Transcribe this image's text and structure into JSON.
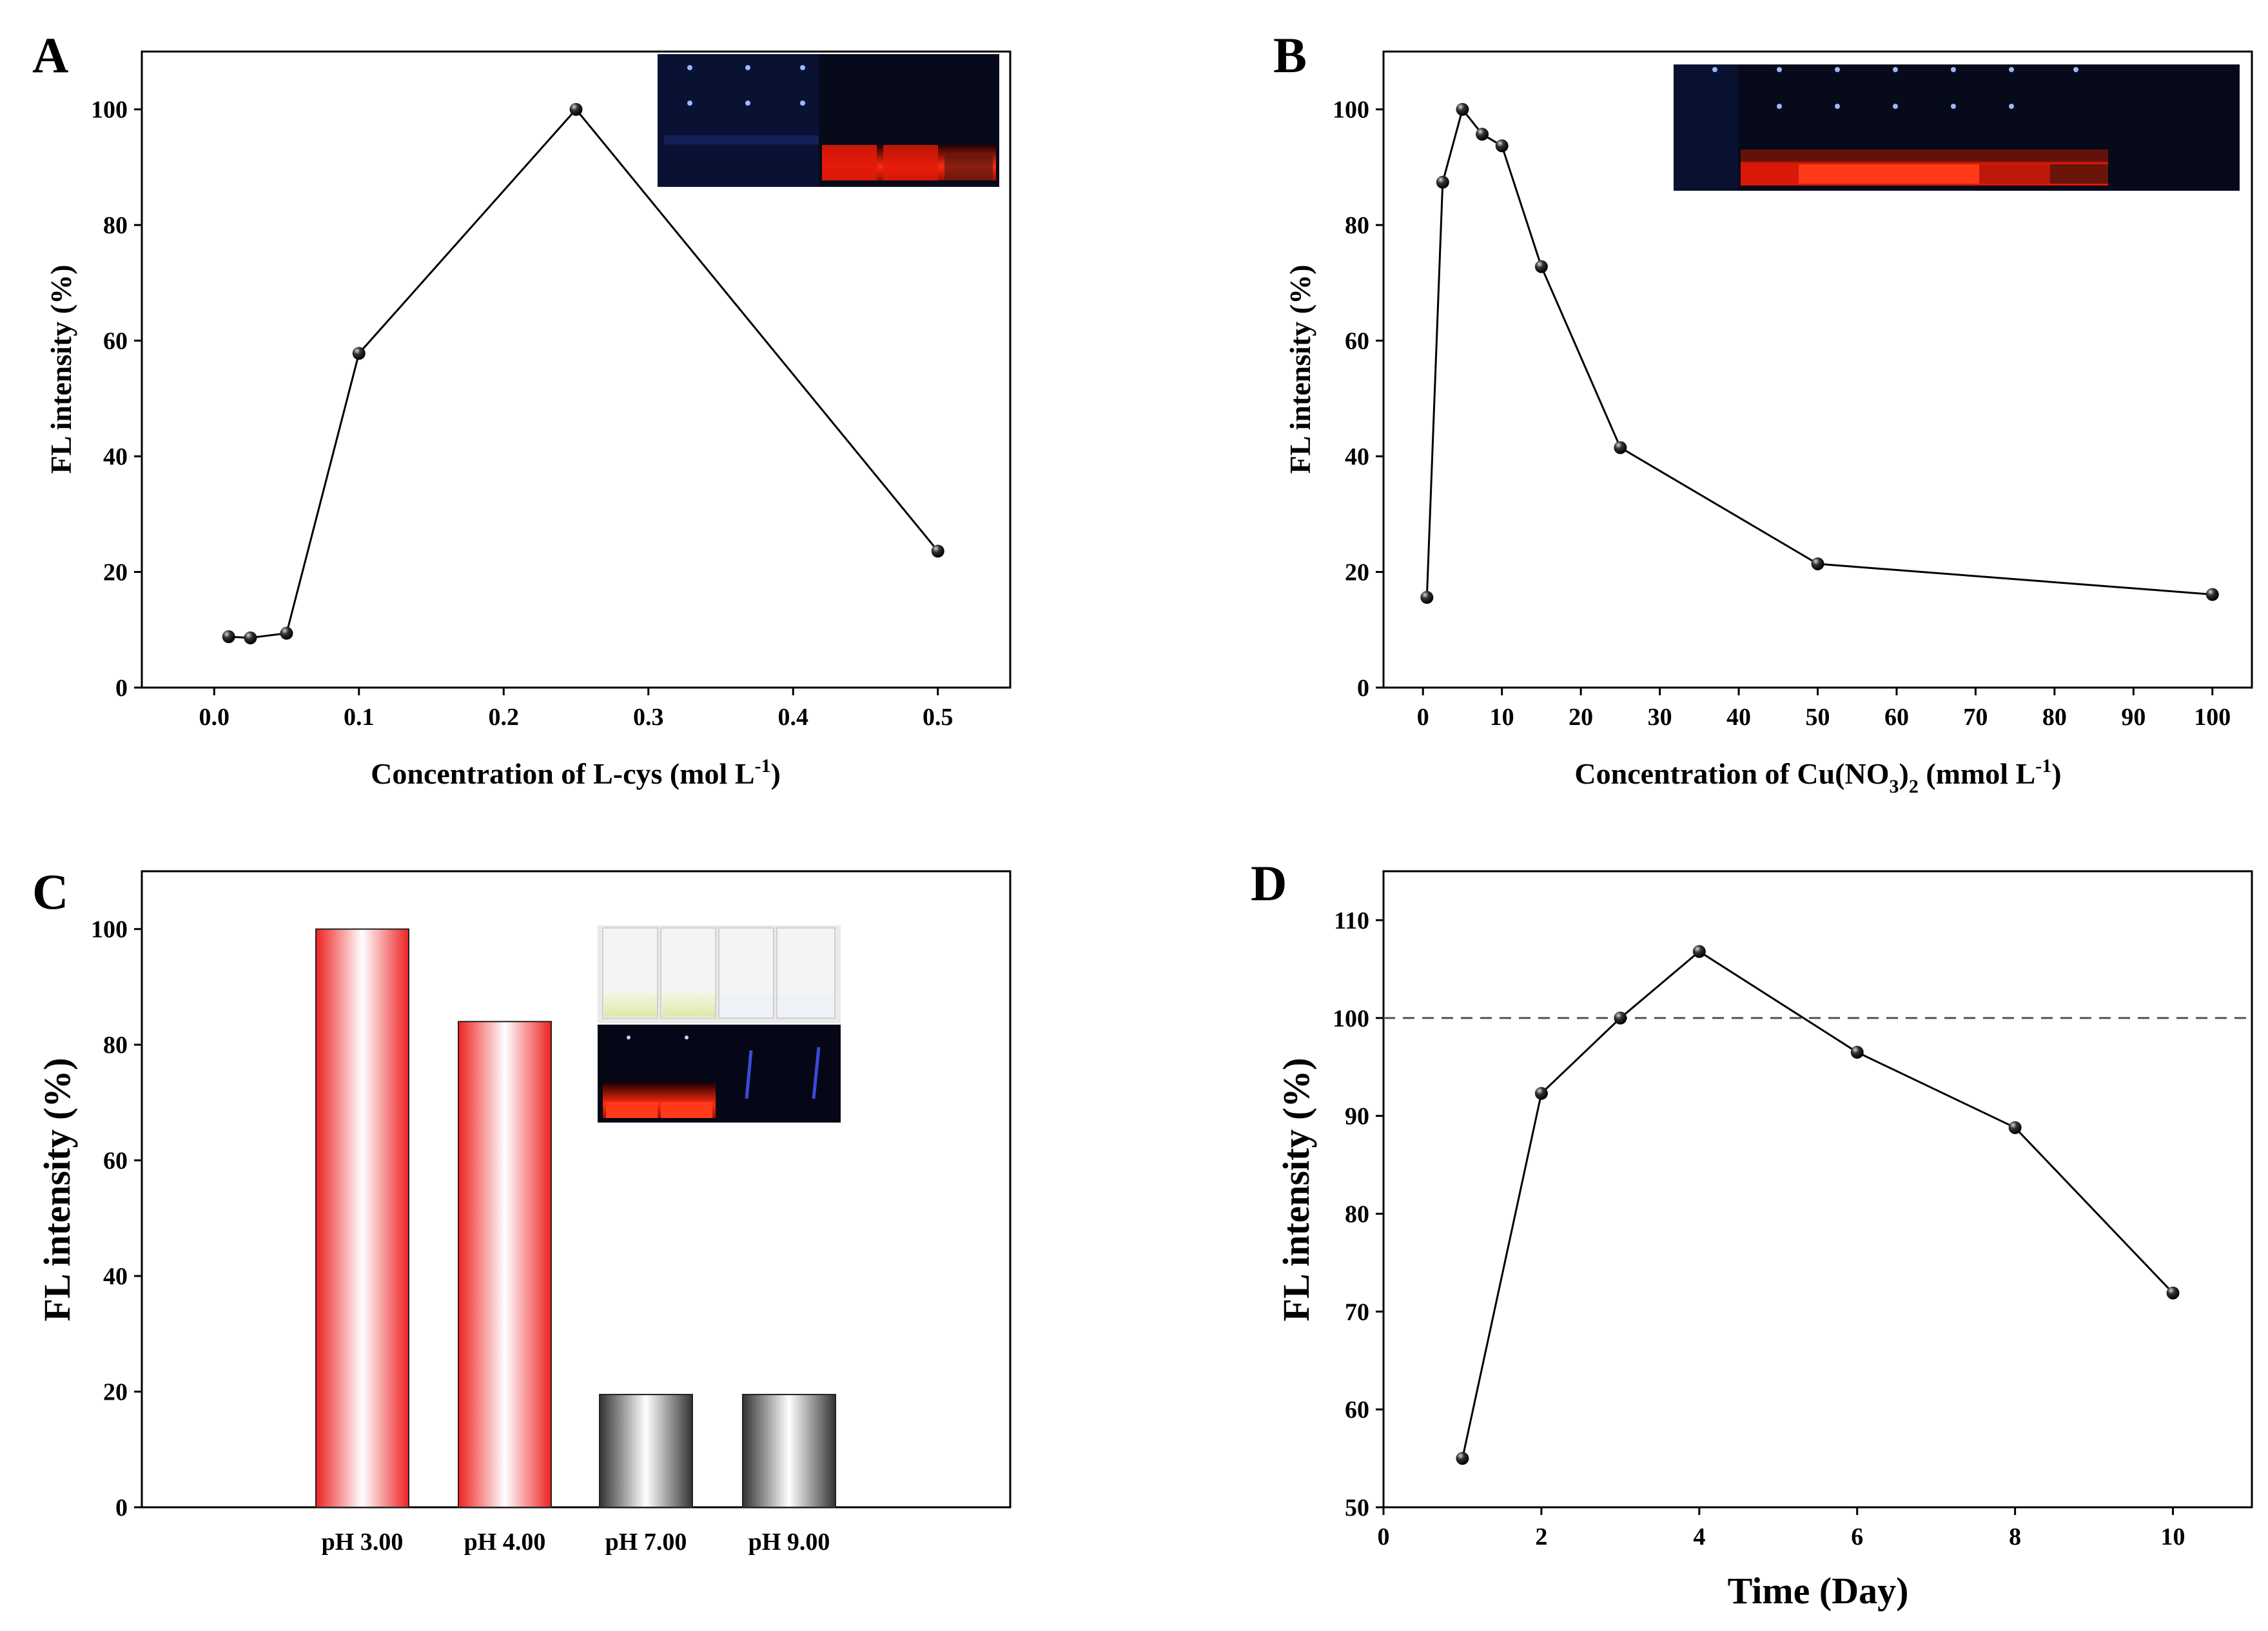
{
  "chart_data": [
    {
      "id": "A",
      "type": "line",
      "panel_label": "A",
      "xlabel_parts": [
        "Concentration of L-cys (mol L",
        "-1",
        ")"
      ],
      "ylabel": "FL  intensity (%)",
      "xlim": [
        -0.05,
        0.55
      ],
      "ylim": [
        0,
        110
      ],
      "xticks": [
        0.0,
        0.1,
        0.2,
        0.3,
        0.4,
        0.5
      ],
      "xtick_labels": [
        "0.0",
        "0.1",
        "0.2",
        "0.3",
        "0.4",
        "0.5"
      ],
      "yticks": [
        0,
        20,
        40,
        60,
        80,
        100
      ],
      "ytick_labels": [
        "0",
        "20",
        "40",
        "60",
        "80",
        "100"
      ],
      "series": [
        {
          "name": "FL intensity",
          "x": [
            0.01,
            0.025,
            0.05,
            0.1,
            0.25,
            0.5
          ],
          "y": [
            8.8,
            8.6,
            9.4,
            57.8,
            100,
            23.6
          ]
        }
      ],
      "inset": "vial-photo-uv",
      "colors": {
        "line": "#000000",
        "marker": "#000000"
      }
    },
    {
      "id": "B",
      "type": "line",
      "panel_label": "B",
      "xlabel_parts": [
        "Concentration of Cu(NO",
        "3",
        ")",
        "2",
        " (mmol L",
        "-1",
        ")"
      ],
      "ylabel": "FL  intensity (%)",
      "xlim": [
        -5,
        105
      ],
      "ylim": [
        0,
        110
      ],
      "xticks": [
        0,
        10,
        20,
        30,
        40,
        50,
        60,
        70,
        80,
        90,
        100
      ],
      "xtick_labels": [
        "0",
        "10",
        "20",
        "30",
        "40",
        "50",
        "60",
        "70",
        "80",
        "90",
        "100"
      ],
      "yticks": [
        0,
        20,
        40,
        60,
        80,
        100
      ],
      "ytick_labels": [
        "0",
        "20",
        "40",
        "60",
        "80",
        "100"
      ],
      "series": [
        {
          "name": "FL intensity",
          "x": [
            0.5,
            2.5,
            5,
            7.5,
            10,
            15,
            25,
            50,
            100
          ],
          "y": [
            15.6,
            87.4,
            100,
            95.7,
            93.7,
            72.8,
            41.5,
            21.4,
            16.1
          ]
        }
      ],
      "inset": "vial-photo-uv",
      "colors": {
        "line": "#000000",
        "marker": "#000000"
      }
    },
    {
      "id": "C",
      "type": "bar",
      "panel_label": "C",
      "xlabel": "",
      "ylabel": "FL intensity (%)",
      "ylim": [
        0,
        110
      ],
      "categories": [
        "pH 3.00",
        "pH 4.00",
        "pH 7.00",
        "pH 9.00"
      ],
      "values": [
        100,
        84,
        19.5,
        19.5
      ],
      "yticks": [
        0,
        20,
        40,
        60,
        80,
        100
      ],
      "ytick_labels": [
        "0",
        "20",
        "40",
        "60",
        "80",
        "100"
      ],
      "inset": "vial-photo-daylight-and-uv",
      "colors": {
        "red_bar": "#ee2222",
        "gray_bar": "#333333",
        "bar_center": "#ffffff"
      }
    },
    {
      "id": "D",
      "type": "line",
      "panel_label": "D",
      "xlabel": "Time (Day)",
      "ylabel": "FL intensity (%)",
      "xlim": [
        0,
        11
      ],
      "ylim": [
        50,
        115
      ],
      "xticks": [
        0,
        2,
        4,
        6,
        8,
        10
      ],
      "xtick_labels": [
        "0",
        "2",
        "4",
        "6",
        "8",
        "10"
      ],
      "yticks": [
        50,
        60,
        70,
        80,
        90,
        100,
        110
      ],
      "ytick_labels": [
        "50",
        "60",
        "70",
        "80",
        "90",
        "100",
        "110"
      ],
      "reference_line": 100,
      "series": [
        {
          "name": "FL intensity",
          "x": [
            1,
            2,
            3,
            4,
            6,
            8,
            10
          ],
          "y": [
            55,
            92.3,
            100,
            106.8,
            96.5,
            88.8,
            71.9
          ]
        }
      ],
      "colors": {
        "line": "#000000",
        "marker": "#000000",
        "reference": "#555555"
      }
    }
  ]
}
